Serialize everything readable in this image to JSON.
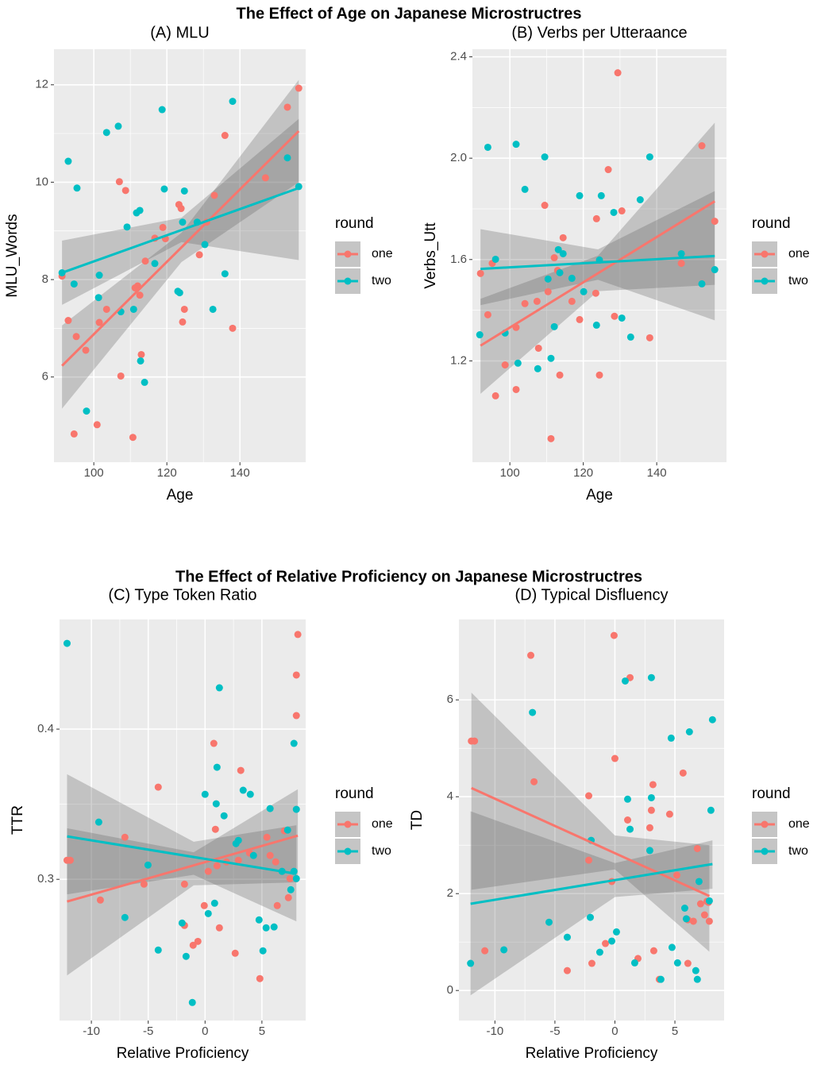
{
  "chart_data": [
    {
      "type": "scatter",
      "suptitle": "The Effect of Age on Japanese Microstructres",
      "title": "(A) MLU",
      "x_label": "Age",
      "y_label": "MLU_Words",
      "xlim": [
        89.1,
        158
      ],
      "ylim": [
        4.25,
        12.73
      ],
      "xticks": [
        100,
        120,
        140
      ],
      "yticks": [
        6,
        8,
        10,
        12
      ],
      "grid": true,
      "minor_grid": true,
      "legend_title": "round",
      "legend_position": "right",
      "series": [
        {
          "name": "one",
          "color": "#F8766D",
          "x": [
            91.3,
            93.0,
            95.2,
            94.6,
            97.8,
            101.5,
            100.9,
            103.5,
            107.0,
            108.7,
            107.4,
            110.7,
            111.3,
            112.0,
            112.6,
            113.0,
            114.1,
            116.7,
            118.9,
            119.6,
            123.3,
            123.9,
            124.8,
            124.3,
            128.9,
            130.9,
            133.0,
            135.9,
            138.0,
            147.0,
            153.0,
            156.1
          ],
          "values": [
            8.07,
            7.16,
            6.83,
            4.83,
            6.55,
            7.12,
            5.02,
            7.39,
            10.01,
            9.83,
            6.02,
            4.76,
            7.83,
            7.87,
            7.68,
            6.46,
            8.38,
            8.85,
            9.07,
            8.84,
            9.54,
            9.46,
            7.39,
            7.13,
            8.51,
            9.18,
            9.73,
            10.96,
            7.0,
            10.09,
            11.54,
            11.93
          ],
          "fit_x": [
            91.3,
            156.1
          ],
          "fit_values": [
            6.23,
            11.05
          ],
          "band_x": [
            91.3,
            124,
            156.1
          ],
          "band_lower": [
            5.35,
            8.36,
            10.0
          ],
          "band_upper": [
            7.06,
            8.96,
            12.1
          ]
        },
        {
          "name": "two",
          "color": "#00BFC4",
          "x": [
            91.3,
            93.0,
            95.4,
            94.6,
            98.0,
            101.3,
            101.5,
            103.5,
            106.7,
            107.4,
            109.1,
            110.9,
            111.7,
            112.6,
            112.8,
            113.9,
            116.7,
            118.7,
            119.3,
            123.0,
            123.5,
            124.8,
            124.3,
            128.3,
            130.4,
            132.6,
            135.9,
            138.0,
            153.0,
            156.1
          ],
          "values": [
            8.14,
            10.43,
            9.88,
            7.91,
            5.3,
            7.63,
            8.09,
            11.02,
            11.15,
            7.34,
            9.08,
            7.39,
            9.37,
            9.42,
            6.33,
            5.89,
            8.33,
            11.49,
            9.86,
            7.76,
            7.73,
            9.82,
            9.18,
            9.18,
            8.72,
            7.39,
            8.12,
            11.66,
            10.5,
            9.91
          ],
          "fit_x": [
            91.3,
            156.1
          ],
          "fit_values": [
            8.14,
            9.88
          ],
          "band_x": [
            91.3,
            124,
            156.1
          ],
          "band_lower": [
            7.48,
            8.77,
            8.4
          ],
          "band_upper": [
            8.8,
            9.27,
            11.3
          ]
        }
      ]
    },
    {
      "type": "scatter",
      "title": "(B) Verbs per Utteraance",
      "x_label": "Age",
      "y_label": "Verbs_Utt",
      "xlim": [
        89.8,
        159
      ],
      "ylim": [
        0.8,
        2.43
      ],
      "xticks": [
        100,
        120,
        140
      ],
      "yticks": [
        1.2,
        1.6,
        {
          "value": 2,
          "label": "2.0"
        },
        2.4
      ],
      "grid": true,
      "minor_grid": true,
      "legend_title": "round",
      "legend_position": "right",
      "series": [
        {
          "name": "one",
          "color": "#F8766D",
          "x": [
            92.0,
            94.0,
            96.1,
            95.2,
            98.7,
            101.7,
            101.7,
            104.1,
            107.4,
            107.8,
            109.5,
            110.4,
            111.2,
            112.1,
            113.6,
            114.5,
            113.0,
            116.9,
            119.0,
            123.6,
            123.4,
            124.4,
            126.8,
            128.5,
            130.5,
            129.4,
            138.1,
            146.7,
            152.3,
            155.8
          ],
          "values": [
            1.545,
            1.382,
            1.062,
            1.585,
            1.184,
            1.332,
            1.087,
            1.426,
            1.435,
            1.25,
            1.814,
            1.473,
            0.893,
            1.607,
            1.144,
            1.686,
            1.557,
            1.435,
            1.363,
            1.761,
            1.467,
            1.144,
            1.955,
            1.376,
            1.792,
            2.337,
            1.291,
            1.585,
            2.049,
            1.751
          ],
          "fit_x": [
            92.0,
            155.8
          ],
          "fit_values": [
            1.26,
            1.83
          ],
          "band_x": [
            92.0,
            124,
            155.8
          ],
          "band_lower": [
            1.07,
            1.475,
            1.5
          ],
          "band_upper": [
            1.445,
            1.615,
            2.14
          ]
        },
        {
          "name": "two",
          "color": "#00BFC4",
          "x": [
            91.8,
            94.0,
            96.1,
            98.7,
            101.7,
            102.2,
            104.1,
            107.6,
            109.5,
            110.4,
            111.2,
            112.1,
            113.2,
            113.6,
            114.5,
            116.9,
            119.0,
            120.1,
            123.6,
            124.4,
            124.9,
            128.3,
            130.5,
            132.9,
            135.5,
            138.1,
            146.7,
            152.3,
            155.8
          ],
          "values": [
            1.303,
            2.043,
            1.601,
            1.31,
            2.055,
            1.191,
            1.877,
            1.169,
            2.005,
            1.523,
            1.21,
            1.335,
            1.639,
            1.548,
            1.623,
            1.526,
            1.852,
            1.473,
            1.341,
            1.598,
            1.852,
            1.786,
            1.369,
            1.294,
            1.836,
            2.005,
            1.623,
            1.504,
            1.56
          ],
          "fit_x": [
            92.0,
            155.8
          ],
          "fit_values": [
            1.563,
            1.614
          ],
          "band_x": [
            92.0,
            124,
            155.8
          ],
          "band_lower": [
            1.42,
            1.52,
            1.36
          ],
          "band_upper": [
            1.72,
            1.64,
            1.87
          ]
        }
      ]
    },
    {
      "type": "scatter",
      "suptitle": "The Effect of Relative Proficiency on Japanese Microstructres",
      "title": "(C) Type Token Ratio",
      "x_label": "Relative Proficiency",
      "y_label": "TTR",
      "xlim": [
        -12.8,
        8.85
      ],
      "ylim": [
        0.206,
        0.473
      ],
      "xticks": [
        -10,
        -5,
        0,
        5
      ],
      "yticks": [
        0.3,
        0.4
      ],
      "grid": true,
      "minor_grid": true,
      "legend_title": "round",
      "legend_position": "right",
      "series": [
        {
          "name": "one",
          "color": "#F8766D",
          "x": [
            -12.14,
            -11.86,
            -9.21,
            -7.05,
            -4.12,
            -5.37,
            -1.81,
            -1.81,
            -1.05,
            -0.63,
            -0.07,
            0.28,
            0.77,
            0.91,
            1.05,
            1.26,
            1.88,
            2.65,
            3.14,
            2.93,
            3.91,
            4.82,
            5.44,
            5.72,
            6.21,
            6.35,
            6.98,
            7.33,
            8.03,
            8.03,
            8.16,
            7.47
          ],
          "values": [
            0.3127,
            0.3127,
            0.2862,
            0.328,
            0.3614,
            0.2968,
            0.2968,
            0.2693,
            0.2561,
            0.2587,
            0.2825,
            0.3053,
            0.3905,
            0.3333,
            0.309,
            0.2677,
            0.3116,
            0.2508,
            0.3725,
            0.3127,
            0.3175,
            0.2339,
            0.328,
            0.3159,
            0.3116,
            0.2825,
            0.3323,
            0.2878,
            0.436,
            0.409,
            0.463,
            0.3005
          ],
          "fit_x": [
            -12.14,
            8.16
          ],
          "fit_values": [
            0.2852,
            0.3291
          ],
          "band_x": [
            -12.14,
            -1,
            8.16
          ],
          "band_lower": [
            0.236,
            0.296,
            0.298
          ],
          "band_upper": [
            0.334,
            0.318,
            0.36
          ]
        },
        {
          "name": "two",
          "color": "#00BFC4",
          "x": [
            -12.14,
            -9.35,
            -7.05,
            -5.02,
            -4.12,
            -2.02,
            -1.67,
            -1.12,
            0.0,
            0.28,
            0.84,
            0.98,
            1.05,
            1.26,
            1.67,
            2.72,
            2.93,
            3.35,
            3.98,
            4.26,
            4.75,
            5.09,
            5.37,
            5.72,
            6.07,
            6.77,
            7.26,
            7.54,
            7.82,
            8.03,
            7.82,
            8.03
          ],
          "values": [
            0.4571,
            0.3381,
            0.2746,
            0.3095,
            0.2529,
            0.2709,
            0.2487,
            0.218,
            0.3566,
            0.2772,
            0.2841,
            0.3503,
            0.3746,
            0.4275,
            0.3423,
            0.3238,
            0.3259,
            0.3593,
            0.3566,
            0.3159,
            0.273,
            0.2524,
            0.2677,
            0.3471,
            0.2683,
            0.3053,
            0.3328,
            0.2931,
            0.3053,
            0.3466,
            0.3905,
            0.3005
          ],
          "fit_x": [
            -12.14,
            8.03
          ],
          "fit_values": [
            0.3286,
            0.3037
          ],
          "band_x": [
            -12.14,
            -1,
            8.03
          ],
          "band_lower": [
            0.29,
            0.303,
            0.272
          ],
          "band_upper": [
            0.37,
            0.325,
            0.336
          ]
        }
      ]
    },
    {
      "type": "scatter",
      "title": "(D) Typical Disfluency",
      "x_label": "Relative Proficiency",
      "y_label": "TD",
      "xlim": [
        -13,
        9.1
      ],
      "ylim": [
        -0.62,
        7.66
      ],
      "xticks": [
        -10,
        -5,
        0,
        5
      ],
      "yticks": [
        0,
        2,
        4,
        6
      ],
      "grid": true,
      "minor_grid": true,
      "legend_title": "round",
      "legend_position": "right",
      "series": [
        {
          "name": "one",
          "color": "#F8766D",
          "x": [
            -11.96,
            -11.7,
            -10.84,
            -7.01,
            -6.74,
            -3.97,
            -2.18,
            -2.18,
            -1.92,
            -0.79,
            -0.07,
            0.0,
            -0.26,
            1.06,
            1.26,
            1.92,
            2.91,
            3.04,
            3.17,
            3.24,
            3.7,
            4.56,
            5.16,
            5.68,
            6.08,
            6.08,
            6.54,
            6.87,
            7.14,
            7.47,
            7.8,
            7.87,
            7.67
          ],
          "values": [
            5.15,
            5.15,
            0.82,
            6.92,
            4.31,
            0.41,
            4.02,
            2.69,
            0.56,
            0.97,
            7.33,
            4.79,
            2.25,
            3.52,
            6.46,
            0.66,
            3.36,
            3.72,
            4.25,
            0.82,
            0.23,
            3.64,
            2.38,
            4.49,
            0.56,
            1.46,
            1.43,
            2.93,
            1.79,
            1.56,
            1.82,
            1.43,
            1.84
          ],
          "fit_x": [
            -11.96,
            7.87
          ],
          "fit_values": [
            4.18,
            1.95
          ],
          "band_x": [
            -11.96,
            0,
            7.87
          ],
          "band_lower": [
            2.08,
            2.5,
            0.8
          ],
          "band_upper": [
            6.15,
            3.2,
            3.0
          ]
        },
        {
          "name": "two",
          "color": "#00BFC4",
          "x": [
            -12.03,
            -9.25,
            -6.87,
            -5.49,
            -3.97,
            -1.98,
            -2.05,
            -1.26,
            -0.26,
            0.13,
            0.86,
            1.06,
            1.26,
            1.65,
            3.04,
            3.04,
            2.91,
            3.83,
            4.76,
            4.69,
            5.22,
            5.82,
            5.95,
            6.21,
            6.74,
            7.01,
            6.87,
            7.87,
            8.13,
            8.0
          ],
          "values": [
            0.56,
            0.84,
            5.74,
            1.41,
            1.1,
            3.1,
            1.51,
            0.79,
            1.02,
            1.21,
            6.39,
            3.95,
            3.33,
            0.57,
            6.46,
            3.98,
            2.89,
            0.23,
            0.89,
            5.21,
            0.57,
            1.7,
            1.48,
            5.34,
            0.41,
            2.25,
            0.23,
            1.85,
            5.59,
            3.72
          ],
          "fit_x": [
            -12.03,
            8.13
          ],
          "fit_values": [
            1.79,
            2.61
          ],
          "band_x": [
            -12.03,
            0,
            8.13
          ],
          "band_lower": [
            -0.1,
            1.93,
            2.1
          ],
          "band_upper": [
            3.7,
            2.63,
            3.1
          ]
        }
      ]
    }
  ]
}
